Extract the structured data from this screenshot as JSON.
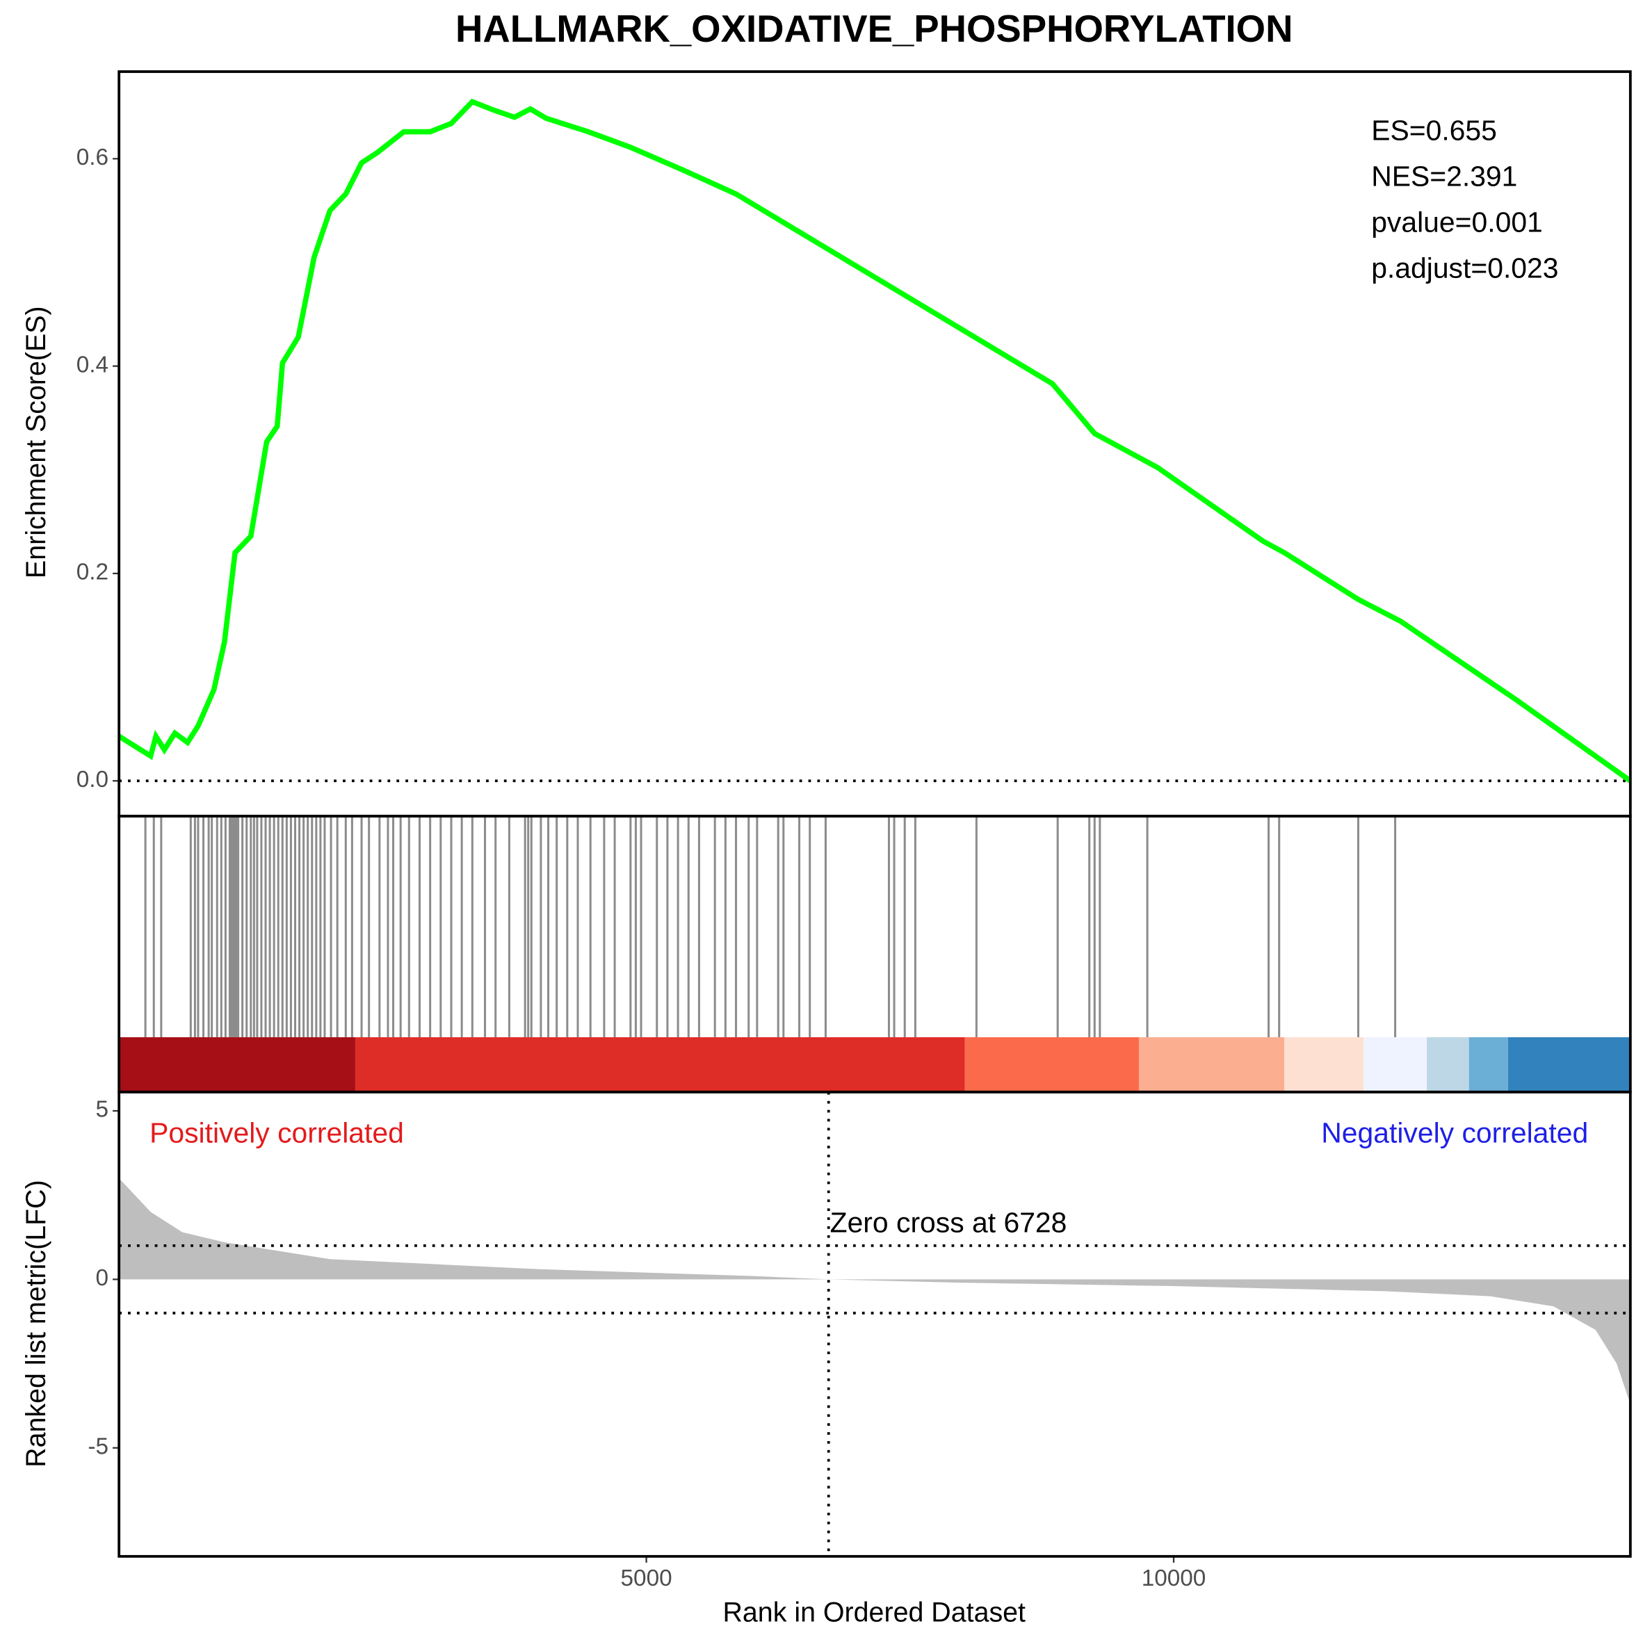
{
  "chart_data": [
    {
      "type": "line",
      "title": "HALLMARK_OXIDATIVE_PHOSPHORYLATION",
      "y_label": "Enrichment Score(ES)",
      "color": "#00ff00",
      "x": [
        0,
        300,
        350,
        430,
        530,
        650,
        750,
        900,
        1000,
        1100,
        1250,
        1400,
        1500,
        1550,
        1700,
        1850,
        2000,
        2150,
        2300,
        2450,
        2700,
        2950,
        3150,
        3350,
        3550,
        3750,
        3900,
        4050,
        4450,
        4850,
        5350,
        5850,
        6850,
        7850,
        8850,
        9250,
        9850,
        10850,
        11050,
        11750,
        12150,
        13250,
        14330
      ],
      "values": [
        0.043,
        0.024,
        0.043,
        0.03,
        0.046,
        0.037,
        0.053,
        0.088,
        0.134,
        0.22,
        0.236,
        0.327,
        0.342,
        0.403,
        0.428,
        0.505,
        0.55,
        0.566,
        0.596,
        0.606,
        0.626,
        0.626,
        0.634,
        0.655,
        0.647,
        0.64,
        0.648,
        0.639,
        0.626,
        0.611,
        0.589,
        0.566,
        0.505,
        0.444,
        0.383,
        0.335,
        0.302,
        0.231,
        0.22,
        0.175,
        0.154,
        0.078,
        0.0
      ],
      "xlim": [
        0,
        14330
      ],
      "ylim": [
        -0.034,
        0.684
      ],
      "yticks": [
        {
          "value": 0,
          "label": "0.0"
        },
        0.2,
        0.4,
        0.6
      ],
      "hline": [
        0
      ],
      "annotations": [
        "ES=0.655",
        "NES=2.391",
        "pvalue=0.001",
        "p.adjust=0.023"
      ]
    },
    {
      "type": "rug",
      "color": "#000000",
      "x": [
        250,
        330,
        400,
        680,
        720,
        750,
        800,
        850,
        880,
        930,
        970,
        1010,
        1050,
        1070,
        1090,
        1110,
        1130,
        1170,
        1210,
        1250,
        1280,
        1310,
        1350,
        1390,
        1430,
        1470,
        1510,
        1550,
        1590,
        1630,
        1670,
        1710,
        1750,
        1790,
        1830,
        1870,
        1910,
        1950,
        2010,
        2070,
        2150,
        2210,
        2300,
        2370,
        2470,
        2550,
        2600,
        2670,
        2750,
        2850,
        2950,
        3050,
        3150,
        3250,
        3350,
        3470,
        3570,
        3700,
        3850,
        3880,
        3910,
        4000,
        4070,
        4150,
        4250,
        4350,
        4470,
        4600,
        4700,
        4850,
        4900,
        4950,
        5100,
        5200,
        5300,
        5400,
        5500,
        5650,
        5750,
        5850,
        5970,
        6050,
        6250,
        6300,
        6450,
        6550,
        6700,
        7300,
        7350,
        7450,
        7550,
        8130,
        8900,
        9200,
        9250,
        9300,
        9750,
        10900,
        11000,
        11750,
        12100
      ],
      "xlim": [
        0,
        14330
      ],
      "band_edges": [
        0,
        2240,
        8020,
        9670,
        11050,
        11800,
        12400,
        12800,
        13170,
        14330
      ],
      "band_colors": [
        "#a50f15",
        "#de2d26",
        "#fb6a4a",
        "#fcae91",
        "#fee0d2",
        "#eff3ff",
        "#bdd7e7",
        "#6baed6",
        "#3182bd"
      ]
    },
    {
      "type": "area",
      "x_label": "Rank in Ordered Dataset",
      "y_label": "Ranked list metric(LFC)",
      "color": "#bebebe",
      "x": [
        0,
        300,
        600,
        1000,
        2000,
        3000,
        4000,
        5000,
        6000,
        6728,
        8000,
        10000,
        12000,
        13000,
        13600,
        14000,
        14200,
        14330
      ],
      "values": [
        3.0,
        2.0,
        1.4,
        1.1,
        0.6,
        0.45,
        0.3,
        0.2,
        0.1,
        0,
        -0.1,
        -0.2,
        -0.35,
        -0.5,
        -0.8,
        -1.5,
        -2.5,
        -3.7
      ],
      "xlim": [
        0,
        14330
      ],
      "ylim": [
        -8.22,
        5.56
      ],
      "xticks": [
        5000,
        10000
      ],
      "yticks": [
        -5,
        0,
        5
      ],
      "hline": [
        1,
        -1
      ],
      "vline": 6728,
      "annotations": [
        {
          "text": "Positively correlated",
          "color": "#e41a1c"
        },
        {
          "text": "Zero cross at 6728",
          "color": "#000000"
        },
        {
          "text": "Negatively correlated",
          "color": "#1f1fe6"
        }
      ]
    }
  ]
}
